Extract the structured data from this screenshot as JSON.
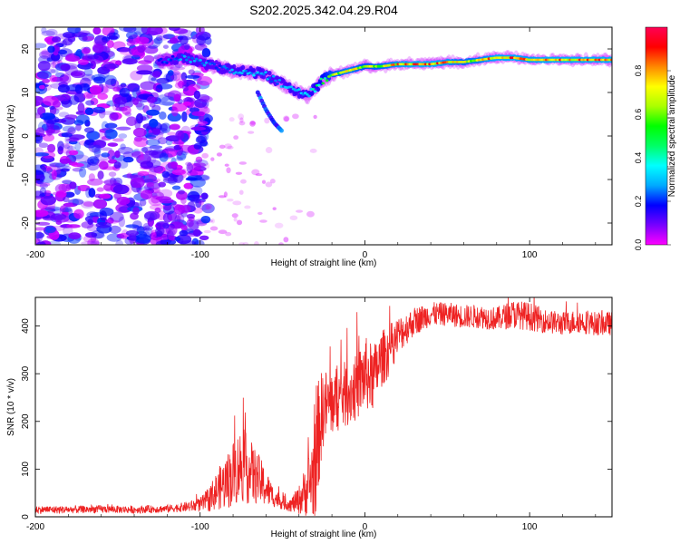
{
  "title": "S202.2025.342.04.29.R04",
  "colorbar": {
    "label": "Normalized spectral amplitude",
    "ticks": [
      0.0,
      0.2,
      0.4,
      0.6,
      0.8
    ],
    "tick_labels": [
      "0.0",
      "0.2",
      "0.4",
      "0.6",
      "0.8"
    ],
    "colors": [
      "#ff00ff",
      "#7700ff",
      "#0000ff",
      "#00aaff",
      "#00ffff",
      "#00ff66",
      "#00ff00",
      "#aaff00",
      "#ffff00",
      "#ff8800",
      "#ff0000",
      "#ff0055"
    ]
  },
  "chart_data": [
    {
      "type": "heatmap",
      "title": "S202.2025.342.04.29.R04",
      "xlabel": "Height of straight line (km)",
      "ylabel": "Frequency (Hz)",
      "xlim": [
        -200,
        150
      ],
      "ylim": [
        -25,
        25
      ],
      "xticks": [
        -200,
        -100,
        0,
        100
      ],
      "xtick_labels": [
        "-200",
        "-100",
        "0",
        "100"
      ],
      "yticks": [
        -20,
        -10,
        0,
        10,
        20
      ],
      "ytick_labels": [
        "-20",
        "-10",
        "0",
        "10",
        "20"
      ],
      "ridge_x": [
        -125,
        -110,
        -100,
        -90,
        -80,
        -70,
        -60,
        -55,
        -50,
        -45,
        -40,
        -35,
        -30,
        -25,
        -20,
        -10,
        0,
        10,
        20,
        30,
        40,
        50,
        60,
        70,
        80,
        90,
        100,
        110,
        120,
        130,
        140,
        150
      ],
      "ridge_y": [
        17,
        18,
        17,
        16,
        15,
        15,
        14,
        13,
        12,
        11,
        10,
        9,
        11,
        13,
        14,
        15,
        16,
        16,
        16.5,
        16.5,
        16.5,
        17,
        17,
        17.5,
        18,
        18,
        17.5,
        17.5,
        17.5,
        17.5,
        17.5,
        17.5
      ],
      "ridge_amp": [
        0.2,
        0.3,
        0.3,
        0.25,
        0.3,
        0.35,
        0.3,
        0.3,
        0.3,
        0.35,
        0.35,
        0.35,
        0.45,
        0.55,
        0.7,
        0.8,
        0.7,
        0.75,
        0.85,
        0.9,
        0.9,
        0.85,
        0.75,
        0.8,
        0.9,
        0.9,
        0.85,
        0.9,
        0.9,
        0.9,
        0.9,
        0.9
      ],
      "branch_x": [
        -65,
        -60,
        -55,
        -50
      ],
      "branch_y": [
        10,
        6,
        3,
        1
      ],
      "noise_region_x": [
        -200,
        -100
      ],
      "noise_amplitude": 0.15
    },
    {
      "type": "line",
      "xlabel": "Height of straight line (km)",
      "ylabel": "SNR (10 * v/v)",
      "xlim": [
        -200,
        150
      ],
      "ylim": [
        0,
        460
      ],
      "xticks": [
        -200,
        -100,
        0,
        100
      ],
      "xtick_labels": [
        "-200",
        "-100",
        "0",
        "100"
      ],
      "yticks": [
        0,
        100,
        200,
        300,
        400
      ],
      "ytick_labels": [
        "0",
        "100",
        "200",
        "300",
        "400"
      ],
      "color": "#ee2222",
      "series": [
        {
          "name": "SNR",
          "x": [
            -200,
            -180,
            -160,
            -140,
            -120,
            -110,
            -100,
            -95,
            -90,
            -85,
            -80,
            -75,
            -70,
            -65,
            -60,
            -55,
            -50,
            -45,
            -40,
            -35,
            -30,
            -28,
            -25,
            -20,
            -15,
            -10,
            -5,
            0,
            5,
            10,
            15,
            20,
            25,
            30,
            40,
            50,
            60,
            70,
            80,
            90,
            100,
            110,
            120,
            130,
            140,
            150
          ],
          "y": [
            15,
            15,
            16,
            15,
            17,
            20,
            25,
            35,
            55,
            70,
            90,
            110,
            95,
            80,
            60,
            40,
            30,
            25,
            35,
            60,
            100,
            180,
            230,
            240,
            250,
            260,
            270,
            300,
            290,
            330,
            350,
            380,
            395,
            410,
            425,
            425,
            420,
            420,
            415,
            425,
            420,
            410,
            405,
            410,
            405,
            405
          ],
          "noise_amplitude": [
            8,
            8,
            8,
            8,
            8,
            10,
            15,
            25,
            40,
            55,
            70,
            80,
            70,
            55,
            40,
            20,
            15,
            15,
            30,
            60,
            110,
            120,
            80,
            70,
            70,
            70,
            70,
            80,
            70,
            60,
            55,
            40,
            35,
            30,
            25,
            25,
            25,
            25,
            25,
            30,
            30,
            25,
            25,
            25,
            25,
            25
          ]
        }
      ]
    }
  ]
}
